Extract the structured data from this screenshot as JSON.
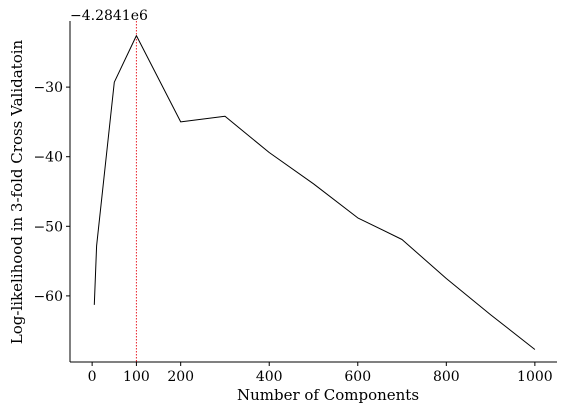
{
  "chart_data": {
    "type": "line",
    "title": "",
    "xlabel": "Number of Components",
    "ylabel": "Log-likelihood in 3-fold Cross Validatoin",
    "y_offset_label": "−4.2841e6",
    "xlim": [
      -50,
      1050
    ],
    "ylim": [
      -69.5,
      -20.5
    ],
    "grid": false,
    "legend": "none",
    "x_ticks": [
      {
        "value": 0,
        "label": "0"
      },
      {
        "value": 100,
        "label": "100"
      },
      {
        "value": 200,
        "label": "200"
      },
      {
        "value": 400,
        "label": "400"
      },
      {
        "value": 600,
        "label": "600"
      },
      {
        "value": 800,
        "label": "800"
      },
      {
        "value": 1000,
        "label": "1000"
      }
    ],
    "y_ticks": [
      {
        "value": -30,
        "label": "−30"
      },
      {
        "value": -40,
        "label": "−40"
      },
      {
        "value": -50,
        "label": "−50"
      },
      {
        "value": -60,
        "label": "−60"
      }
    ],
    "series": [
      {
        "color": "#000000",
        "x": [
          5,
          10,
          50,
          100,
          200,
          300,
          400,
          500,
          600,
          700,
          800,
          900,
          1000
        ],
        "y": [
          -61.3,
          -52.8,
          -29.3,
          -22.6,
          -35.0,
          -34.2,
          -39.4,
          -43.9,
          -48.8,
          -51.9,
          -57.5,
          -62.7,
          -67.7
        ]
      }
    ],
    "vline": {
      "x": 100,
      "color": "#e8212a",
      "style": "dotted"
    }
  }
}
